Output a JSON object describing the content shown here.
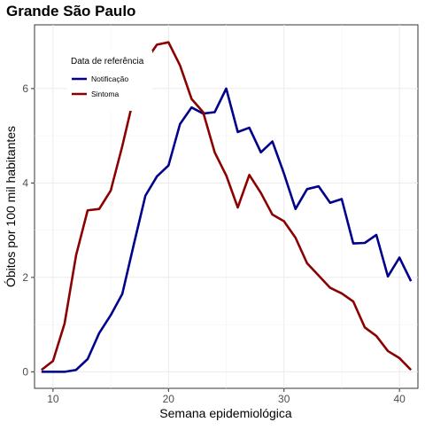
{
  "chart_data": {
    "type": "line",
    "title": "Grande São Paulo",
    "xlabel": "Semana epidemiológica",
    "ylabel": "Óbitos por 100 mil habitantes",
    "xlim": [
      8.4,
      41.6
    ],
    "ylim": [
      -0.35,
      7.35
    ],
    "x_ticks": [
      10,
      20,
      30,
      40
    ],
    "y_ticks": [
      0,
      2,
      4,
      6
    ],
    "grid": true,
    "legend": {
      "title": "Data de referência",
      "placement": "top-left inside"
    },
    "series": [
      {
        "name": "Notificação",
        "color": "#00008B",
        "x": [
          9,
          10,
          11,
          12,
          13,
          14,
          15,
          16,
          17,
          18,
          19,
          20,
          21,
          22,
          23,
          24,
          25,
          26,
          27,
          28,
          29,
          30,
          31,
          32,
          33,
          34,
          35,
          36,
          37,
          38,
          39,
          40,
          41
        ],
        "y": [
          0.0,
          0.0,
          0.0,
          0.04,
          0.27,
          0.82,
          1.2,
          1.65,
          2.7,
          3.73,
          4.14,
          4.37,
          5.25,
          5.6,
          5.47,
          5.5,
          6.0,
          5.08,
          5.17,
          4.65,
          4.88,
          4.2,
          3.45,
          3.87,
          3.93,
          3.58,
          3.66,
          2.72,
          2.73,
          2.9,
          2.02,
          2.42,
          1.92
        ]
      },
      {
        "name": "Sintoma",
        "color": "#8B0000",
        "x": [
          9,
          10,
          11,
          12,
          13,
          14,
          15,
          16,
          17,
          18,
          19,
          20,
          21,
          22,
          23,
          24,
          25,
          26,
          27,
          28,
          29,
          30,
          31,
          32,
          33,
          34,
          35,
          36,
          37,
          38,
          39,
          40,
          41
        ],
        "y": [
          0.04,
          0.23,
          1.02,
          2.47,
          3.42,
          3.45,
          3.84,
          4.78,
          5.82,
          6.58,
          6.93,
          6.98,
          6.49,
          5.78,
          5.5,
          4.65,
          4.16,
          3.48,
          4.17,
          3.79,
          3.33,
          3.19,
          2.84,
          2.3,
          2.04,
          1.78,
          1.66,
          1.49,
          0.94,
          0.76,
          0.44,
          0.29,
          0.04
        ]
      }
    ]
  }
}
